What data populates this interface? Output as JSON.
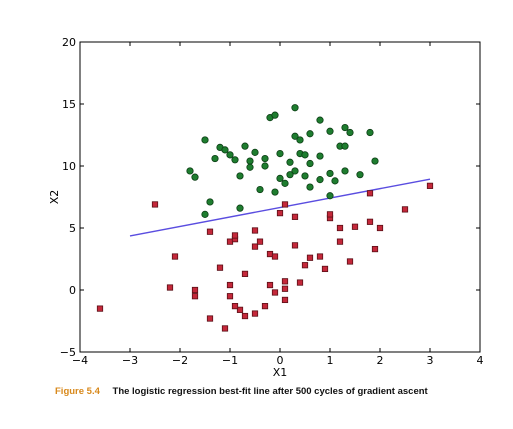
{
  "caption": {
    "figure_number": "Figure 5.4",
    "text": "The logistic regression best-fit line after 500 cycles of gradient ascent"
  },
  "colors": {
    "class1": "#1e7d2f",
    "class0": "#c4283a",
    "fit_line": "#5a4de0",
    "caption_accent": "#d8891c"
  },
  "chart_data": {
    "type": "scatter",
    "xlabel": "X1",
    "ylabel": "X2",
    "xlim": [
      -4,
      4
    ],
    "ylim": [
      -5,
      20
    ],
    "xticks": [
      -4,
      -3,
      -2,
      -1,
      0,
      1,
      2,
      3,
      4
    ],
    "yticks": [
      -5,
      0,
      5,
      10,
      15,
      20
    ],
    "grid": false,
    "series": [
      {
        "marker": "circle",
        "color": "#1e7d2f",
        "points": [
          [
            0.3,
            14.7
          ],
          [
            -0.2,
            13.9
          ],
          [
            -0.1,
            14.1
          ],
          [
            0.8,
            13.7
          ],
          [
            1.0,
            12.8
          ],
          [
            1.3,
            13.1
          ],
          [
            0.3,
            12.4
          ],
          [
            0.6,
            12.6
          ],
          [
            0.4,
            12.1
          ],
          [
            1.4,
            12.7
          ],
          [
            1.8,
            12.7
          ],
          [
            -1.5,
            12.1
          ],
          [
            -0.7,
            11.6
          ],
          [
            -1.2,
            11.5
          ],
          [
            -1.1,
            11.3
          ],
          [
            -0.5,
            11.1
          ],
          [
            1.2,
            11.6
          ],
          [
            1.3,
            11.6
          ],
          [
            0.0,
            11.0
          ],
          [
            0.4,
            11.0
          ],
          [
            0.5,
            10.9
          ],
          [
            -1.0,
            10.9
          ],
          [
            -0.6,
            10.4
          ],
          [
            -0.3,
            10.6
          ],
          [
            0.2,
            10.3
          ],
          [
            0.8,
            10.8
          ],
          [
            0.6,
            10.2
          ],
          [
            -0.3,
            10.0
          ],
          [
            -0.9,
            10.5
          ],
          [
            -1.3,
            10.6
          ],
          [
            0.3,
            9.6
          ],
          [
            0.5,
            9.2
          ],
          [
            1.0,
            9.4
          ],
          [
            1.3,
            9.6
          ],
          [
            1.9,
            10.4
          ],
          [
            0.2,
            9.3
          ],
          [
            0.0,
            9.0
          ],
          [
            -0.8,
            9.2
          ],
          [
            -1.8,
            9.6
          ],
          [
            -1.7,
            9.1
          ],
          [
            1.1,
            8.8
          ],
          [
            -0.4,
            8.1
          ],
          [
            0.6,
            8.3
          ],
          [
            1.0,
            7.6
          ],
          [
            -1.4,
            7.1
          ],
          [
            -0.8,
            6.6
          ],
          [
            -1.5,
            6.1
          ],
          [
            -0.1,
            7.9
          ],
          [
            0.8,
            8.9
          ],
          [
            1.6,
            9.3
          ],
          [
            -0.6,
            9.9
          ],
          [
            0.1,
            8.6
          ]
        ]
      },
      {
        "marker": "square",
        "color": "#c4283a",
        "points": [
          [
            -3.6,
            -1.5
          ],
          [
            -2.5,
            6.9
          ],
          [
            -2.1,
            2.7
          ],
          [
            -2.2,
            0.2
          ],
          [
            -1.7,
            0.0
          ],
          [
            -1.7,
            -0.5
          ],
          [
            -1.4,
            -2.3
          ],
          [
            -1.1,
            -3.1
          ],
          [
            -0.8,
            -1.6
          ],
          [
            -0.9,
            -1.3
          ],
          [
            -0.7,
            -2.1
          ],
          [
            -0.5,
            -1.9
          ],
          [
            -0.3,
            -1.3
          ],
          [
            -1.0,
            -0.5
          ],
          [
            -1.0,
            3.9
          ],
          [
            -0.9,
            4.1
          ],
          [
            -0.9,
            4.4
          ],
          [
            -0.5,
            3.5
          ],
          [
            -0.4,
            3.9
          ],
          [
            -0.5,
            4.8
          ],
          [
            -1.4,
            4.7
          ],
          [
            -1.2,
            1.8
          ],
          [
            -0.7,
            1.3
          ],
          [
            -1.0,
            0.4
          ],
          [
            -0.2,
            2.9
          ],
          [
            -0.1,
            2.7
          ],
          [
            0.1,
            0.7
          ],
          [
            -0.2,
            0.4
          ],
          [
            0.1,
            0.1
          ],
          [
            0.4,
            0.6
          ],
          [
            0.1,
            -0.8
          ],
          [
            0.5,
            2.0
          ],
          [
            0.3,
            3.6
          ],
          [
            0.6,
            2.6
          ],
          [
            0.8,
            2.7
          ],
          [
            0.9,
            1.7
          ],
          [
            1.0,
            5.8
          ],
          [
            1.0,
            6.1
          ],
          [
            1.2,
            5.0
          ],
          [
            1.4,
            2.3
          ],
          [
            1.5,
            5.1
          ],
          [
            1.8,
            5.5
          ],
          [
            1.9,
            3.3
          ],
          [
            1.8,
            7.8
          ],
          [
            2.0,
            5.0
          ],
          [
            2.5,
            6.5
          ],
          [
            3.0,
            8.4
          ],
          [
            0.0,
            6.2
          ],
          [
            0.3,
            5.9
          ],
          [
            0.1,
            6.9
          ],
          [
            1.2,
            3.9
          ],
          [
            -0.1,
            -0.2
          ]
        ]
      }
    ],
    "fit_line": {
      "x": [
        -3.0,
        3.0
      ],
      "y": [
        4.36,
        8.94
      ]
    }
  }
}
